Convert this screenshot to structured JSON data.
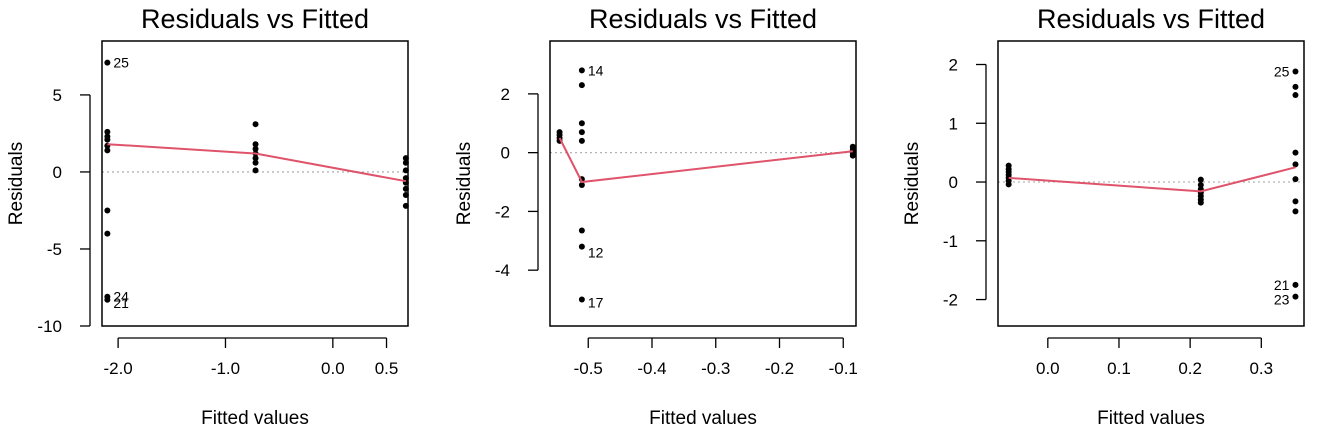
{
  "chart_data": [
    {
      "type": "scatter",
      "title": "Residuals vs Fitted",
      "xlabel": "Fitted values",
      "ylabel": "Residuals",
      "xlim": [
        -2.15,
        0.7
      ],
      "ylim": [
        -10,
        8.5
      ],
      "xticks": [
        -2.0,
        -1.0,
        0.0,
        0.5
      ],
      "xtick_labels": [
        "-2.0",
        "-1.0",
        "0.0",
        "0.5"
      ],
      "yticks": [
        -10,
        -5,
        0,
        5
      ],
      "ytick_labels": [
        "-10",
        "-5",
        "0",
        "5"
      ],
      "reference_line": 0,
      "points": [
        {
          "x": -2.1,
          "y": 7.1
        },
        {
          "x": -2.1,
          "y": 2.6
        },
        {
          "x": -2.1,
          "y": 2.3
        },
        {
          "x": -2.1,
          "y": 2.1
        },
        {
          "x": -2.1,
          "y": 1.7
        },
        {
          "x": -2.1,
          "y": 1.4
        },
        {
          "x": -2.1,
          "y": -2.5
        },
        {
          "x": -2.1,
          "y": -4.0
        },
        {
          "x": -2.1,
          "y": -8.1
        },
        {
          "x": -2.1,
          "y": -8.3
        },
        {
          "x": -0.72,
          "y": 3.1
        },
        {
          "x": -0.72,
          "y": 1.8
        },
        {
          "x": -0.72,
          "y": 1.5
        },
        {
          "x": -0.72,
          "y": 1.2
        },
        {
          "x": -0.72,
          "y": 0.9
        },
        {
          "x": -0.72,
          "y": 0.6
        },
        {
          "x": -0.72,
          "y": 0.1
        },
        {
          "x": 0.68,
          "y": 0.9
        },
        {
          "x": 0.68,
          "y": 0.6
        },
        {
          "x": 0.68,
          "y": 0.1
        },
        {
          "x": 0.68,
          "y": -0.4
        },
        {
          "x": 0.68,
          "y": -0.7
        },
        {
          "x": 0.68,
          "y": -1.1
        },
        {
          "x": 0.68,
          "y": -1.5
        },
        {
          "x": 0.68,
          "y": -2.2
        }
      ],
      "annotations": [
        {
          "label": "25",
          "x": -2.1,
          "y": 7.1
        },
        {
          "label": "24",
          "x": -2.1,
          "y": -8.1
        },
        {
          "label": "21",
          "x": -2.1,
          "y": -8.5
        }
      ],
      "smooth_line": {
        "x": [
          -2.1,
          -0.72,
          0.68
        ],
        "y": [
          1.8,
          1.2,
          -0.6
        ]
      }
    },
    {
      "type": "scatter",
      "title": "Residuals vs Fitted",
      "xlabel": "Fitted values",
      "ylabel": "Residuals",
      "xlim": [
        -0.56,
        -0.08
      ],
      "ylim": [
        -5.9,
        3.8
      ],
      "xticks": [
        -0.5,
        -0.4,
        -0.3,
        -0.2,
        -0.1
      ],
      "xtick_labels": [
        "-0.5",
        "-0.4",
        "-0.3",
        "-0.2",
        "-0.1"
      ],
      "yticks": [
        -4,
        -2,
        0,
        2
      ],
      "ytick_labels": [
        "-4",
        "-2",
        "0",
        "2"
      ],
      "reference_line": 0,
      "points": [
        {
          "x": -0.545,
          "y": 0.7
        },
        {
          "x": -0.545,
          "y": 0.6
        },
        {
          "x": -0.545,
          "y": 0.5
        },
        {
          "x": -0.545,
          "y": 0.4
        },
        {
          "x": -0.51,
          "y": 2.8
        },
        {
          "x": -0.51,
          "y": 2.3
        },
        {
          "x": -0.51,
          "y": 1.0
        },
        {
          "x": -0.51,
          "y": 0.7
        },
        {
          "x": -0.51,
          "y": 0.4
        },
        {
          "x": -0.51,
          "y": -0.9
        },
        {
          "x": -0.51,
          "y": -1.1
        },
        {
          "x": -0.51,
          "y": -2.65
        },
        {
          "x": -0.51,
          "y": -3.2
        },
        {
          "x": -0.51,
          "y": -5.0
        },
        {
          "x": -0.085,
          "y": 0.2
        },
        {
          "x": -0.085,
          "y": 0.1
        },
        {
          "x": -0.085,
          "y": 0.0
        },
        {
          "x": -0.085,
          "y": -0.1
        }
      ],
      "annotations": [
        {
          "label": "14",
          "x": -0.51,
          "y": 2.8
        },
        {
          "label": "12",
          "x": -0.51,
          "y": -3.4
        },
        {
          "label": "17",
          "x": -0.51,
          "y": -5.1
        }
      ],
      "smooth_line": {
        "x": [
          -0.545,
          -0.51,
          -0.085
        ],
        "y": [
          0.5,
          -1.0,
          0.05
        ]
      }
    },
    {
      "type": "scatter",
      "title": "Residuals vs Fitted",
      "xlabel": "Fitted values",
      "ylabel": "Residuals",
      "xlim": [
        -0.07,
        0.36
      ],
      "ylim": [
        -2.45,
        2.4
      ],
      "xticks": [
        0.0,
        0.1,
        0.2,
        0.3
      ],
      "xtick_labels": [
        "0.0",
        "0.1",
        "0.2",
        "0.3"
      ],
      "yticks": [
        -2,
        -1,
        0,
        1,
        2
      ],
      "ytick_labels": [
        "-2",
        "-1",
        "0",
        "1",
        "2"
      ],
      "reference_line": 0,
      "points": [
        {
          "x": -0.055,
          "y": 0.28
        },
        {
          "x": -0.055,
          "y": 0.22
        },
        {
          "x": -0.055,
          "y": 0.17
        },
        {
          "x": -0.055,
          "y": 0.12
        },
        {
          "x": -0.055,
          "y": 0.07
        },
        {
          "x": -0.055,
          "y": 0.02
        },
        {
          "x": -0.055,
          "y": -0.04
        },
        {
          "x": 0.215,
          "y": 0.04
        },
        {
          "x": 0.215,
          "y": -0.05
        },
        {
          "x": 0.215,
          "y": -0.12
        },
        {
          "x": 0.215,
          "y": -0.18
        },
        {
          "x": 0.215,
          "y": -0.24
        },
        {
          "x": 0.215,
          "y": -0.3
        },
        {
          "x": 0.215,
          "y": -0.35
        },
        {
          "x": 0.348,
          "y": 1.88
        },
        {
          "x": 0.348,
          "y": 1.62
        },
        {
          "x": 0.348,
          "y": 1.48
        },
        {
          "x": 0.348,
          "y": 0.5
        },
        {
          "x": 0.348,
          "y": 0.3
        },
        {
          "x": 0.348,
          "y": 0.05
        },
        {
          "x": 0.348,
          "y": -0.33
        },
        {
          "x": 0.348,
          "y": -0.5
        },
        {
          "x": 0.348,
          "y": -1.75
        },
        {
          "x": 0.348,
          "y": -1.95
        }
      ],
      "annotations": [
        {
          "label": "25",
          "x": 0.348,
          "y": 1.88
        },
        {
          "label": "21",
          "x": 0.348,
          "y": -1.75
        },
        {
          "label": "23",
          "x": 0.348,
          "y": -2.0
        }
      ],
      "smooth_line": {
        "x": [
          -0.055,
          0.215,
          0.348
        ],
        "y": [
          0.07,
          -0.16,
          0.25
        ]
      }
    }
  ]
}
